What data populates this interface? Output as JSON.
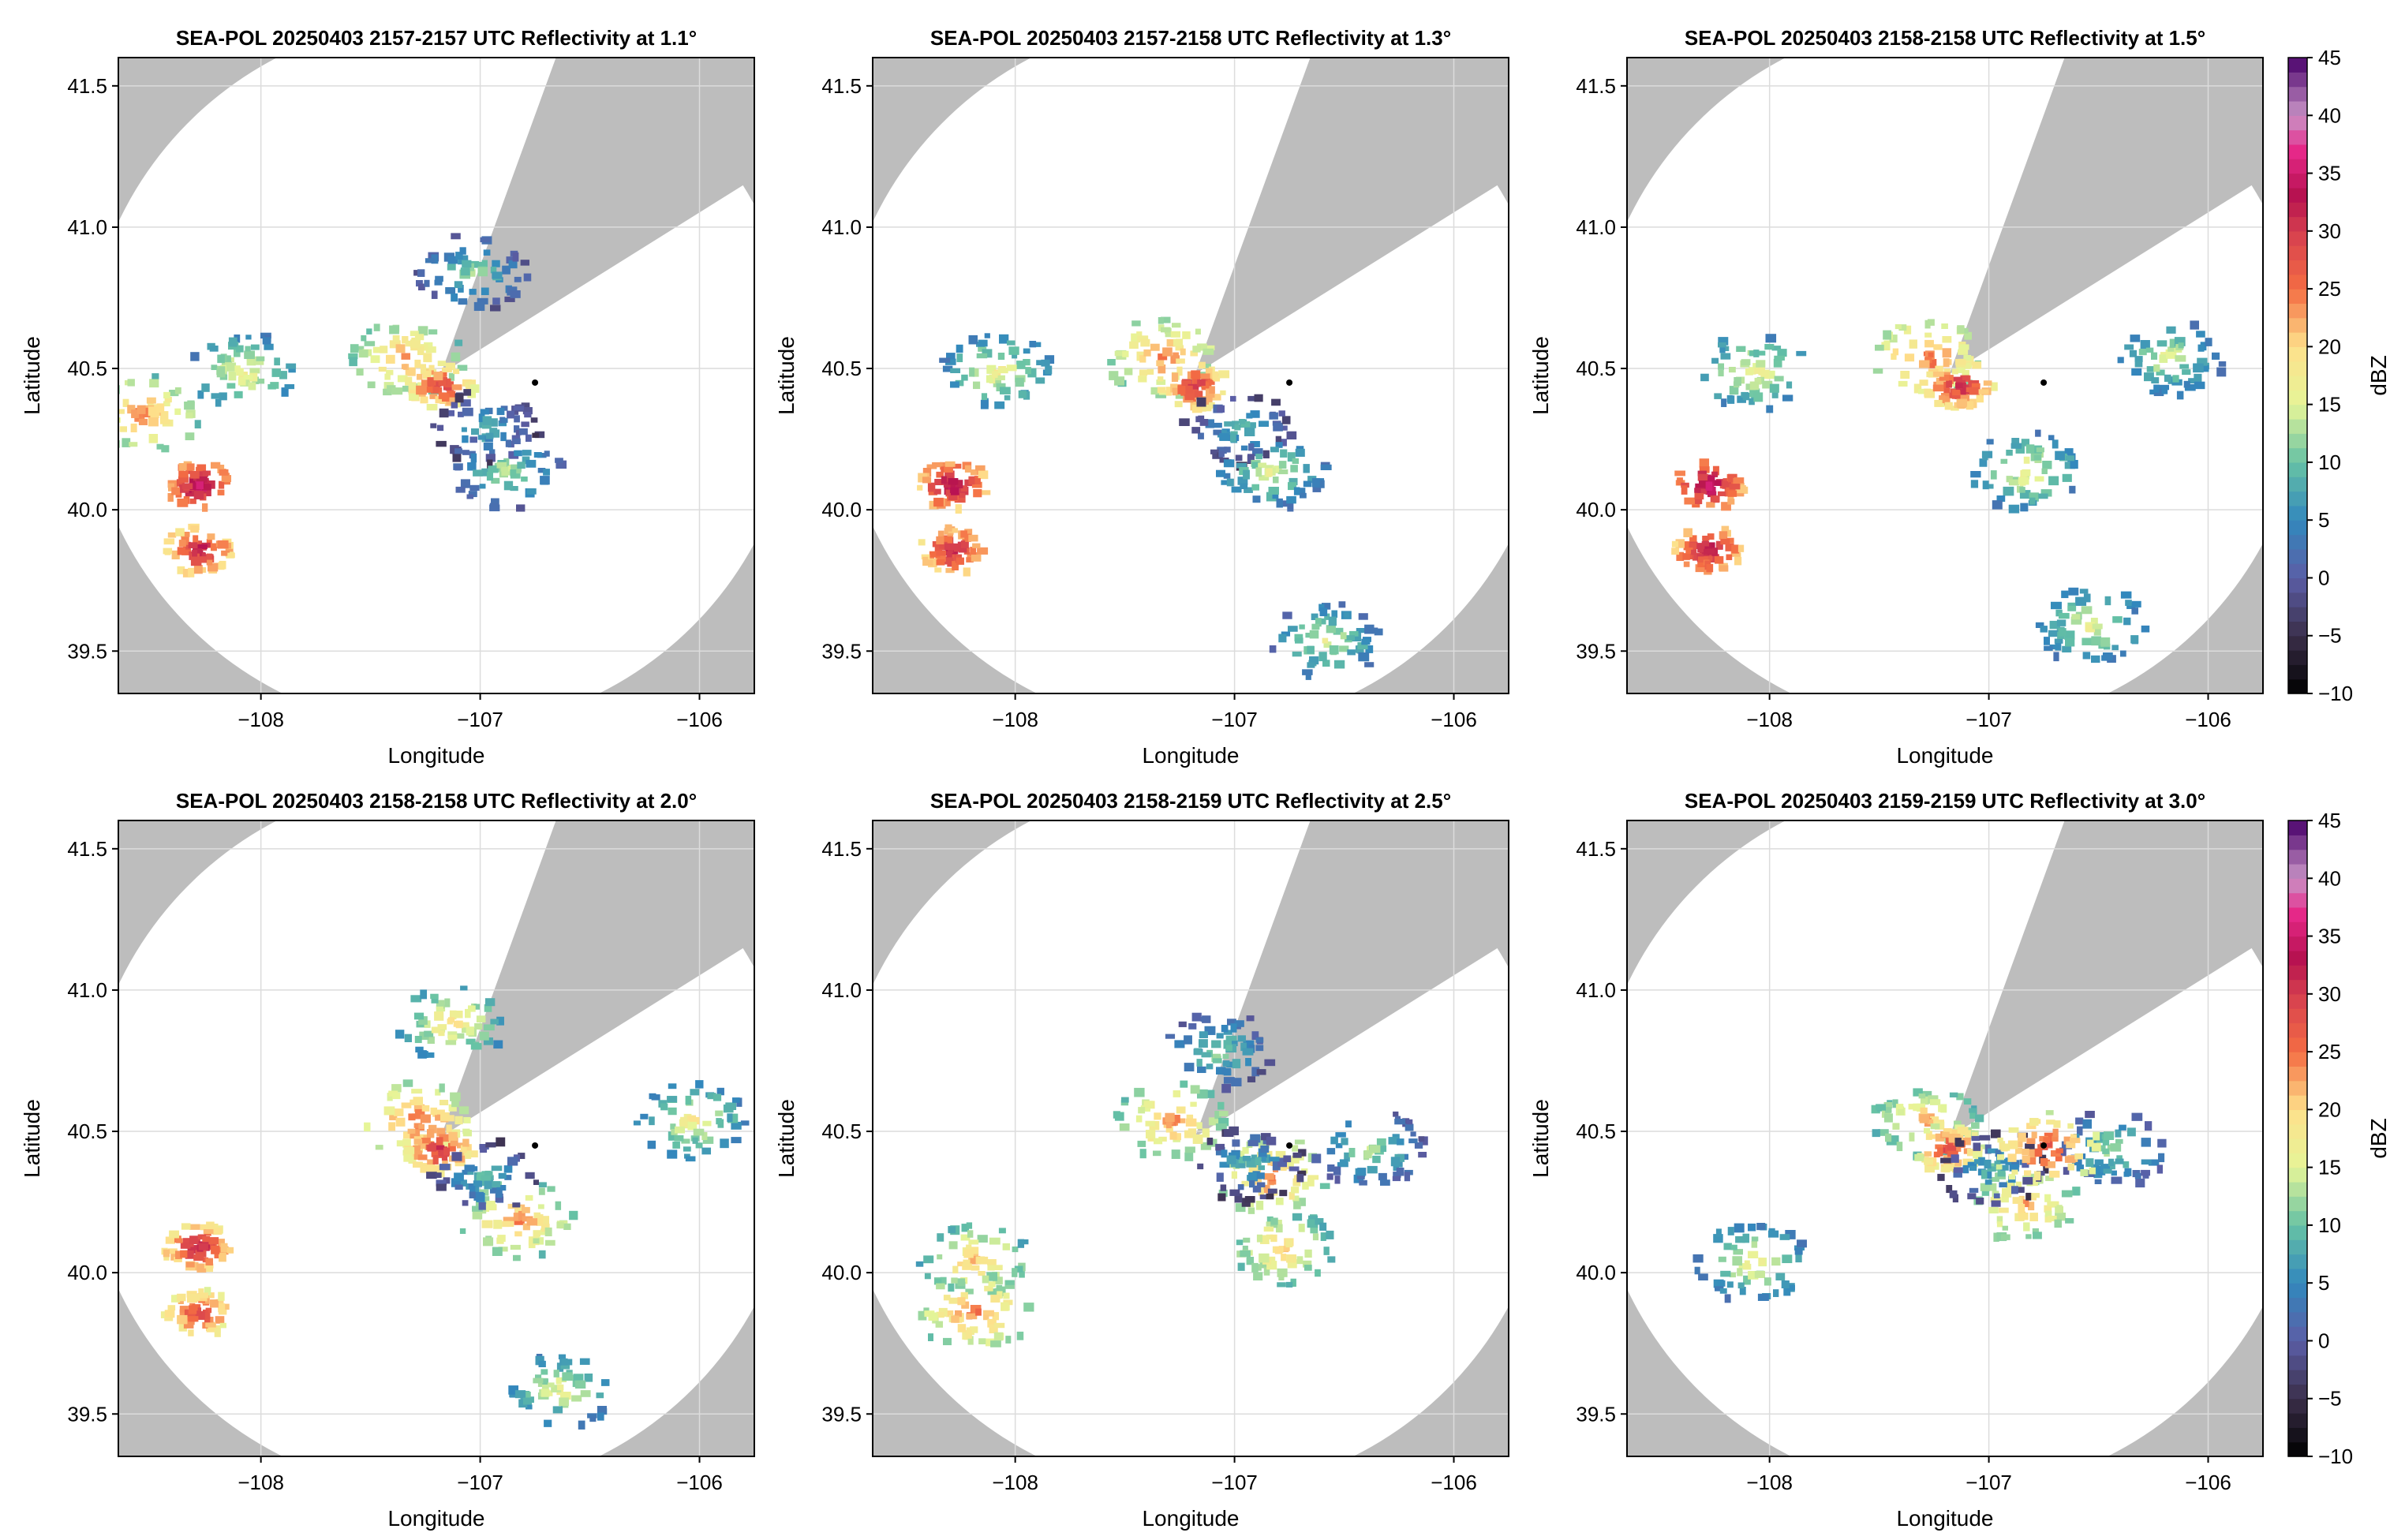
{
  "colors": {
    "masked_background": "#bdbdbd",
    "radar_coverage": "#ffffff",
    "gridline": "#dcdcdc",
    "frame": "#000000"
  },
  "colorbar": {
    "label": "dBZ",
    "range": [
      -10,
      45
    ],
    "tick_values": [
      -10,
      -5,
      0,
      5,
      10,
      15,
      20,
      25,
      30,
      35,
      40,
      45
    ],
    "tick_labels": [
      "−10",
      "−5",
      "0",
      "5",
      "10",
      "15",
      "20",
      "25",
      "30",
      "35",
      "40",
      "45"
    ],
    "colormap": "spectral (reversed)",
    "stops": [
      {
        "v": -10,
        "c": "#000000"
      },
      {
        "v": -5,
        "c": "#3b2f4a"
      },
      {
        "v": 0,
        "c": "#5b5ea6"
      },
      {
        "v": 5,
        "c": "#3288bd"
      },
      {
        "v": 10,
        "c": "#66c2a5"
      },
      {
        "v": 15,
        "c": "#e6f598"
      },
      {
        "v": 20,
        "c": "#fee08b"
      },
      {
        "v": 25,
        "c": "#f46d43"
      },
      {
        "v": 30,
        "c": "#d53e4f"
      },
      {
        "v": 33,
        "c": "#b5114f"
      },
      {
        "v": 37,
        "c": "#e7298a"
      },
      {
        "v": 40,
        "c": "#c994c7"
      },
      {
        "v": 45,
        "c": "#49006a"
      }
    ]
  },
  "chart_data": [
    {
      "type": "heatmap",
      "title": "SEA-POL 20250403 2157-2157 UTC Reflectivity at 1.1°",
      "xlabel": "Longitude",
      "ylabel": "Latitude",
      "xlim": [
        -108.65,
        -105.75
      ],
      "ylim": [
        39.35,
        41.6
      ],
      "xticks": [
        -108,
        -107,
        -106
      ],
      "xtick_labels": [
        "−108",
        "−107",
        "−106"
      ],
      "yticks": [
        39.5,
        40.0,
        40.5,
        41.0,
        41.5
      ],
      "ytick_labels": [
        "39.5",
        "40.0",
        "40.5",
        "41.0",
        "41.5"
      ],
      "grid": true,
      "radar_site": {
        "lon": -107.18,
        "lat": 40.48
      },
      "coverage_radius_deg": 1.42,
      "blocked_sector_deg": [
        20,
        58
      ],
      "secondary_site": {
        "lon": -106.75,
        "lat": 40.45
      },
      "echoes": [
        {
          "lon": -107.35,
          "lat": 40.55,
          "dbz": 24
        },
        {
          "lon": -107.2,
          "lat": 40.45,
          "dbz": 30
        },
        {
          "lon": -107.0,
          "lat": 40.3,
          "dbz": 10
        },
        {
          "lon": -106.9,
          "lat": 40.15,
          "dbz": 14
        },
        {
          "lon": -108.3,
          "lat": 40.1,
          "dbz": 35
        },
        {
          "lon": -108.3,
          "lat": 39.87,
          "dbz": 33
        },
        {
          "lon": -108.1,
          "lat": 40.5,
          "dbz": 18
        },
        {
          "lon": -108.55,
          "lat": 40.35,
          "dbz": 24
        },
        {
          "lon": -107.05,
          "lat": 40.85,
          "dbz": 13
        }
      ]
    },
    {
      "type": "heatmap",
      "title": "SEA-POL 20250403 2157-2158 UTC Reflectivity at 1.3°",
      "xlabel": "Longitude",
      "ylabel": "Latitude",
      "xlim": [
        -108.65,
        -105.75
      ],
      "ylim": [
        39.35,
        41.6
      ],
      "xticks": [
        -108,
        -107,
        -106
      ],
      "xtick_labels": [
        "−108",
        "−107",
        "−106"
      ],
      "yticks": [
        39.5,
        40.0,
        40.5,
        41.0,
        41.5
      ],
      "ytick_labels": [
        "39.5",
        "40.0",
        "40.5",
        "41.0",
        "41.5"
      ],
      "grid": true,
      "radar_site": {
        "lon": -107.18,
        "lat": 40.48
      },
      "coverage_radius_deg": 1.42,
      "blocked_sector_deg": [
        20,
        58
      ],
      "secondary_site": {
        "lon": -106.75,
        "lat": 40.45
      },
      "echoes": [
        {
          "lon": -107.35,
          "lat": 40.55,
          "dbz": 25
        },
        {
          "lon": -107.2,
          "lat": 40.45,
          "dbz": 31
        },
        {
          "lon": -107.0,
          "lat": 40.3,
          "dbz": 10
        },
        {
          "lon": -106.85,
          "lat": 40.15,
          "dbz": 16
        },
        {
          "lon": -108.3,
          "lat": 40.1,
          "dbz": 35
        },
        {
          "lon": -108.3,
          "lat": 39.87,
          "dbz": 33
        },
        {
          "lon": -108.1,
          "lat": 40.5,
          "dbz": 18
        },
        {
          "lon": -106.6,
          "lat": 39.55,
          "dbz": 16
        }
      ]
    },
    {
      "type": "heatmap",
      "title": "SEA-POL 20250403 2158-2158 UTC Reflectivity at 1.5°",
      "xlabel": "Longitude",
      "ylabel": "Latitude",
      "xlim": [
        -108.65,
        -105.75
      ],
      "ylim": [
        39.35,
        41.6
      ],
      "xticks": [
        -108,
        -107,
        -106
      ],
      "xtick_labels": [
        "−108",
        "−107",
        "−106"
      ],
      "yticks": [
        39.5,
        40.0,
        40.5,
        41.0,
        41.5
      ],
      "ytick_labels": [
        "39.5",
        "40.0",
        "40.5",
        "41.0",
        "41.5"
      ],
      "grid": true,
      "radar_site": {
        "lon": -107.18,
        "lat": 40.48
      },
      "coverage_radius_deg": 1.42,
      "blocked_sector_deg": [
        20,
        58
      ],
      "secondary_site": {
        "lon": -106.75,
        "lat": 40.45
      },
      "echoes": [
        {
          "lon": -107.3,
          "lat": 40.55,
          "dbz": 26
        },
        {
          "lon": -107.15,
          "lat": 40.45,
          "dbz": 32
        },
        {
          "lon": -106.85,
          "lat": 40.15,
          "dbz": 18
        },
        {
          "lon": -108.3,
          "lat": 40.1,
          "dbz": 36
        },
        {
          "lon": -108.3,
          "lat": 39.87,
          "dbz": 34
        },
        {
          "lon": -108.1,
          "lat": 40.5,
          "dbz": 18
        },
        {
          "lon": -106.2,
          "lat": 40.55,
          "dbz": 16
        },
        {
          "lon": -106.55,
          "lat": 39.6,
          "dbz": 17
        }
      ]
    },
    {
      "type": "heatmap",
      "title": "SEA-POL 20250403 2158-2158 UTC Reflectivity at 2.0°",
      "xlabel": "Longitude",
      "ylabel": "Latitude",
      "xlim": [
        -108.65,
        -105.75
      ],
      "ylim": [
        39.35,
        41.6
      ],
      "xticks": [
        -108,
        -107,
        -106
      ],
      "xtick_labels": [
        "−108",
        "−107",
        "−106"
      ],
      "yticks": [
        39.5,
        40.0,
        40.5,
        41.0,
        41.5
      ],
      "ytick_labels": [
        "39.5",
        "40.0",
        "40.5",
        "41.0",
        "41.5"
      ],
      "grid": true,
      "radar_site": {
        "lon": -107.18,
        "lat": 40.48
      },
      "coverage_radius_deg": 1.42,
      "blocked_sector_deg": [
        20,
        58
      ],
      "secondary_site": {
        "lon": -106.75,
        "lat": 40.45
      },
      "echoes": [
        {
          "lon": -107.3,
          "lat": 40.55,
          "dbz": 26
        },
        {
          "lon": -107.2,
          "lat": 40.45,
          "dbz": 31
        },
        {
          "lon": -106.85,
          "lat": 40.2,
          "dbz": 24
        },
        {
          "lon": -107.0,
          "lat": 40.35,
          "dbz": 10
        },
        {
          "lon": -108.3,
          "lat": 40.1,
          "dbz": 33
        },
        {
          "lon": -108.3,
          "lat": 39.87,
          "dbz": 30
        },
        {
          "lon": -106.05,
          "lat": 40.55,
          "dbz": 18
        },
        {
          "lon": -106.65,
          "lat": 39.6,
          "dbz": 17
        },
        {
          "lon": -107.15,
          "lat": 40.9,
          "dbz": 20
        }
      ]
    },
    {
      "type": "heatmap",
      "title": "SEA-POL 20250403 2158-2159 UTC Reflectivity at 2.5°",
      "xlabel": "Longitude",
      "ylabel": "Latitude",
      "xlim": [
        -108.65,
        -105.75
      ],
      "ylim": [
        39.35,
        41.6
      ],
      "xticks": [
        -108,
        -107,
        -106
      ],
      "xtick_labels": [
        "−108",
        "−107",
        "−106"
      ],
      "yticks": [
        39.5,
        40.0,
        40.5,
        41.0,
        41.5
      ],
      "ytick_labels": [
        "39.5",
        "40.0",
        "40.5",
        "41.0",
        "41.5"
      ],
      "grid": true,
      "radar_site": {
        "lon": -107.18,
        "lat": 40.48
      },
      "coverage_radius_deg": 1.42,
      "blocked_sector_deg": [
        20,
        58
      ],
      "secondary_site": {
        "lon": -106.75,
        "lat": 40.45
      },
      "echoes": [
        {
          "lon": -107.3,
          "lat": 40.55,
          "dbz": 24
        },
        {
          "lon": -106.85,
          "lat": 40.35,
          "dbz": 25
        },
        {
          "lon": -106.95,
          "lat": 40.4,
          "dbz": 10
        },
        {
          "lon": -106.8,
          "lat": 40.1,
          "dbz": 22
        },
        {
          "lon": -108.2,
          "lat": 40.05,
          "dbz": 22
        },
        {
          "lon": -108.2,
          "lat": 39.87,
          "dbz": 25
        },
        {
          "lon": -106.4,
          "lat": 40.45,
          "dbz": 14
        },
        {
          "lon": -107.1,
          "lat": 40.8,
          "dbz": 13
        }
      ]
    },
    {
      "type": "heatmap",
      "title": "SEA-POL 20250403 2159-2159 UTC Reflectivity at 3.0°",
      "xlabel": "Longitude",
      "ylabel": "Latitude",
      "xlim": [
        -108.65,
        -105.75
      ],
      "ylim": [
        39.35,
        41.6
      ],
      "xticks": [
        -108,
        -107,
        -106
      ],
      "xtick_labels": [
        "−108",
        "−107",
        "−106"
      ],
      "yticks": [
        39.5,
        40.0,
        40.5,
        41.0,
        41.5
      ],
      "ytick_labels": [
        "39.5",
        "40.0",
        "40.5",
        "41.0",
        "41.5"
      ],
      "grid": true,
      "radar_site": {
        "lon": -107.18,
        "lat": 40.48
      },
      "coverage_radius_deg": 1.42,
      "blocked_sector_deg": [
        20,
        58
      ],
      "secondary_site": {
        "lon": -106.75,
        "lat": 40.45
      },
      "echoes": [
        {
          "lon": -107.3,
          "lat": 40.55,
          "dbz": 22
        },
        {
          "lon": -107.2,
          "lat": 40.45,
          "dbz": 29
        },
        {
          "lon": -106.85,
          "lat": 40.25,
          "dbz": 23
        },
        {
          "lon": -107.0,
          "lat": 40.38,
          "dbz": 10
        },
        {
          "lon": -108.1,
          "lat": 40.05,
          "dbz": 18
        },
        {
          "lon": -106.45,
          "lat": 40.45,
          "dbz": 14
        },
        {
          "lon": -106.75,
          "lat": 40.45,
          "dbz": 28
        }
      ]
    }
  ]
}
